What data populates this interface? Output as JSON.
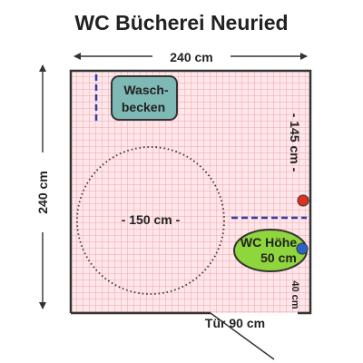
{
  "title": "WC Bücherei Neuried",
  "dimensions": {
    "width_label": "240 cm",
    "height_label": "240 cm",
    "turning_circle_label": "- 150 cm -",
    "side_distance_label": "- 145 cm -",
    "wc_front_distance_label": "40 cm",
    "door_label": "Tür 90 cm"
  },
  "fixtures": {
    "sink_label_line1": "Wasch-",
    "sink_label_line2": "becken",
    "wc_label_line1": "WC Höhe",
    "wc_label_line2": "50 cm"
  },
  "colors": {
    "floor_grid": "#f3a3a8",
    "floor_fill": "#fde7ea",
    "sink_fill": "#7fb9b6",
    "wc_fill": "#8fd53c",
    "grab_bar": "#2e3fa8",
    "red_marker": "#e03020",
    "blue_marker": "#2a63c8"
  }
}
